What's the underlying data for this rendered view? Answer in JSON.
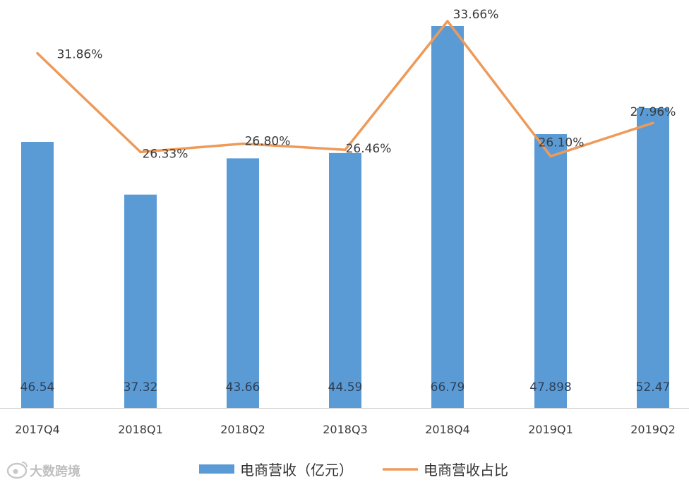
{
  "chart_data": {
    "type": "bar",
    "categories": [
      "2017Q4",
      "2018Q1",
      "2018Q2",
      "2018Q3",
      "2018Q4",
      "2019Q1",
      "2019Q2"
    ],
    "series": [
      {
        "name": "电商营收（亿元）",
        "kind": "bar",
        "color": "#5b9bd5",
        "values": [
          46.54,
          37.32,
          43.66,
          44.59,
          66.79,
          47.898,
          52.47
        ],
        "labels": [
          "46.54",
          "37.32",
          "43.66",
          "44.59",
          "66.79",
          "47.898",
          "52.47"
        ]
      },
      {
        "name": "电商营收占比",
        "kind": "line",
        "color": "#ed9a5a",
        "values": [
          31.86,
          26.33,
          26.8,
          26.46,
          33.66,
          26.1,
          27.96
        ],
        "labels": [
          "31.86%",
          "26.33%",
          "26.80%",
          "26.46%",
          "33.66%",
          "26.10%",
          "27.96%"
        ]
      }
    ],
    "bar_ylim": [
      0,
      66.79
    ],
    "line_ylim": [
      12,
      33.66
    ],
    "legend_position": "bottom",
    "grid": false
  },
  "watermark": {
    "text": "大数跨境",
    "icon": "weibo-logo-icon"
  }
}
